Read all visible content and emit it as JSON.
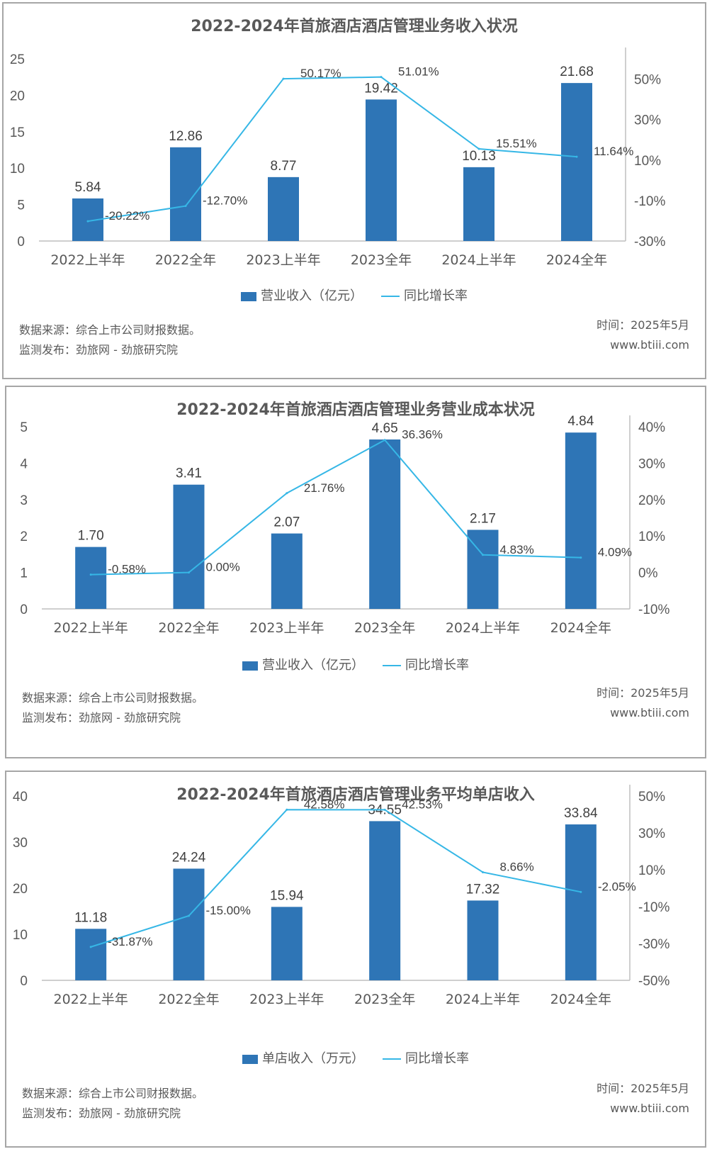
{
  "colors": {
    "bar": "#2e75b6",
    "line": "#36b7e6",
    "axis": "#bfbfbf",
    "text": "#595959"
  },
  "chart_data": [
    {
      "type": "bar",
      "title": "2022-2024年首旅酒店酒店管理业务收入状况",
      "categories": [
        "2022上半年",
        "2022全年",
        "2023上半年",
        "2023全年",
        "2024上半年",
        "2024全年"
      ],
      "series": [
        {
          "name": "营业收入（亿元）",
          "type": "bar",
          "axis": "left",
          "values": [
            5.84,
            12.86,
            8.77,
            19.42,
            10.13,
            21.68
          ]
        },
        {
          "name": "同比增长率",
          "type": "line",
          "axis": "right",
          "values": [
            -20.22,
            -12.7,
            50.17,
            51.01,
            15.51,
            11.64
          ],
          "labels": [
            "-20.22%",
            "-12.70%",
            "50.17%",
            "51.01%",
            "15.51%",
            "11.64%"
          ]
        }
      ],
      "y_left": {
        "ticks": [
          0,
          5,
          10,
          15,
          20,
          25
        ],
        "ylim": [
          0,
          25
        ]
      },
      "y_right": {
        "ticks": [
          "-30%",
          "-10%",
          "10%",
          "30%",
          "50%"
        ],
        "ylim": [
          -30,
          60
        ]
      },
      "legend": "bottom",
      "source": "数据来源：综合上市公司财报数据。",
      "publisher": "监测发布：劲旅网 - 劲旅研究院",
      "time": "时间：2025年5月",
      "site": "www.btiii.com"
    },
    {
      "type": "bar",
      "title": "2022-2024年首旅酒店酒店管理业务营业成本状况",
      "categories": [
        "2022上半年",
        "2022全年",
        "2023上半年",
        "2023全年",
        "2024上半年",
        "2024全年"
      ],
      "series": [
        {
          "name": "营业收入（亿元）",
          "type": "bar",
          "axis": "left",
          "values": [
            1.7,
            3.41,
            2.07,
            4.65,
            2.17,
            4.84
          ],
          "labels": [
            "1.70",
            "3.41",
            "2.07",
            "4.65",
            "2.17",
            "4.84"
          ]
        },
        {
          "name": "同比增长率",
          "type": "line",
          "axis": "right",
          "values": [
            -0.58,
            0.0,
            21.76,
            36.36,
            4.83,
            4.09
          ],
          "labels": [
            "-0.58%",
            "0.00%",
            "21.76%",
            "36.36%",
            "4.83%",
            "4.09%"
          ]
        }
      ],
      "y_left": {
        "ticks": [
          0,
          1,
          2,
          3,
          4,
          5
        ],
        "ylim": [
          0,
          5
        ]
      },
      "y_right": {
        "ticks": [
          "-10%",
          "0%",
          "10%",
          "20%",
          "30%",
          "40%"
        ],
        "ylim": [
          -10,
          40
        ]
      },
      "legend": "bottom",
      "source": "数据来源：综合上市公司财报数据。",
      "publisher": "监测发布：劲旅网 - 劲旅研究院",
      "time": "时间：2025年5月",
      "site": "www.btiii.com"
    },
    {
      "type": "bar",
      "title": "2022-2024年首旅酒店酒店管理业务平均单店收入",
      "categories": [
        "2022上半年",
        "2022全年",
        "2023上半年",
        "2023全年",
        "2024上半年",
        "2024全年"
      ],
      "series": [
        {
          "name": "单店收入（万元）",
          "type": "bar",
          "axis": "left",
          "values": [
            11.18,
            24.24,
            15.94,
            34.55,
            17.32,
            33.84
          ]
        },
        {
          "name": "同比增长率",
          "type": "line",
          "axis": "right",
          "values": [
            -31.87,
            -15.0,
            42.58,
            42.53,
            8.66,
            -2.05
          ],
          "labels": [
            "-31.87%",
            "-15.00%",
            "42.58%",
            "42.53%",
            "8.66%",
            "-2.05%"
          ]
        }
      ],
      "y_left": {
        "ticks": [
          0,
          10,
          20,
          30,
          40
        ],
        "ylim": [
          0,
          40
        ]
      },
      "y_right": {
        "ticks": [
          "-50%",
          "-30%",
          "-10%",
          "10%",
          "30%",
          "50%"
        ],
        "ylim": [
          -50,
          50
        ]
      },
      "legend": "bottom",
      "source": "数据来源：综合上市公司财报数据。",
      "publisher": "监测发布：劲旅网 - 劲旅研究院",
      "time": "时间：2025年5月",
      "site": "www.btiii.com"
    }
  ]
}
